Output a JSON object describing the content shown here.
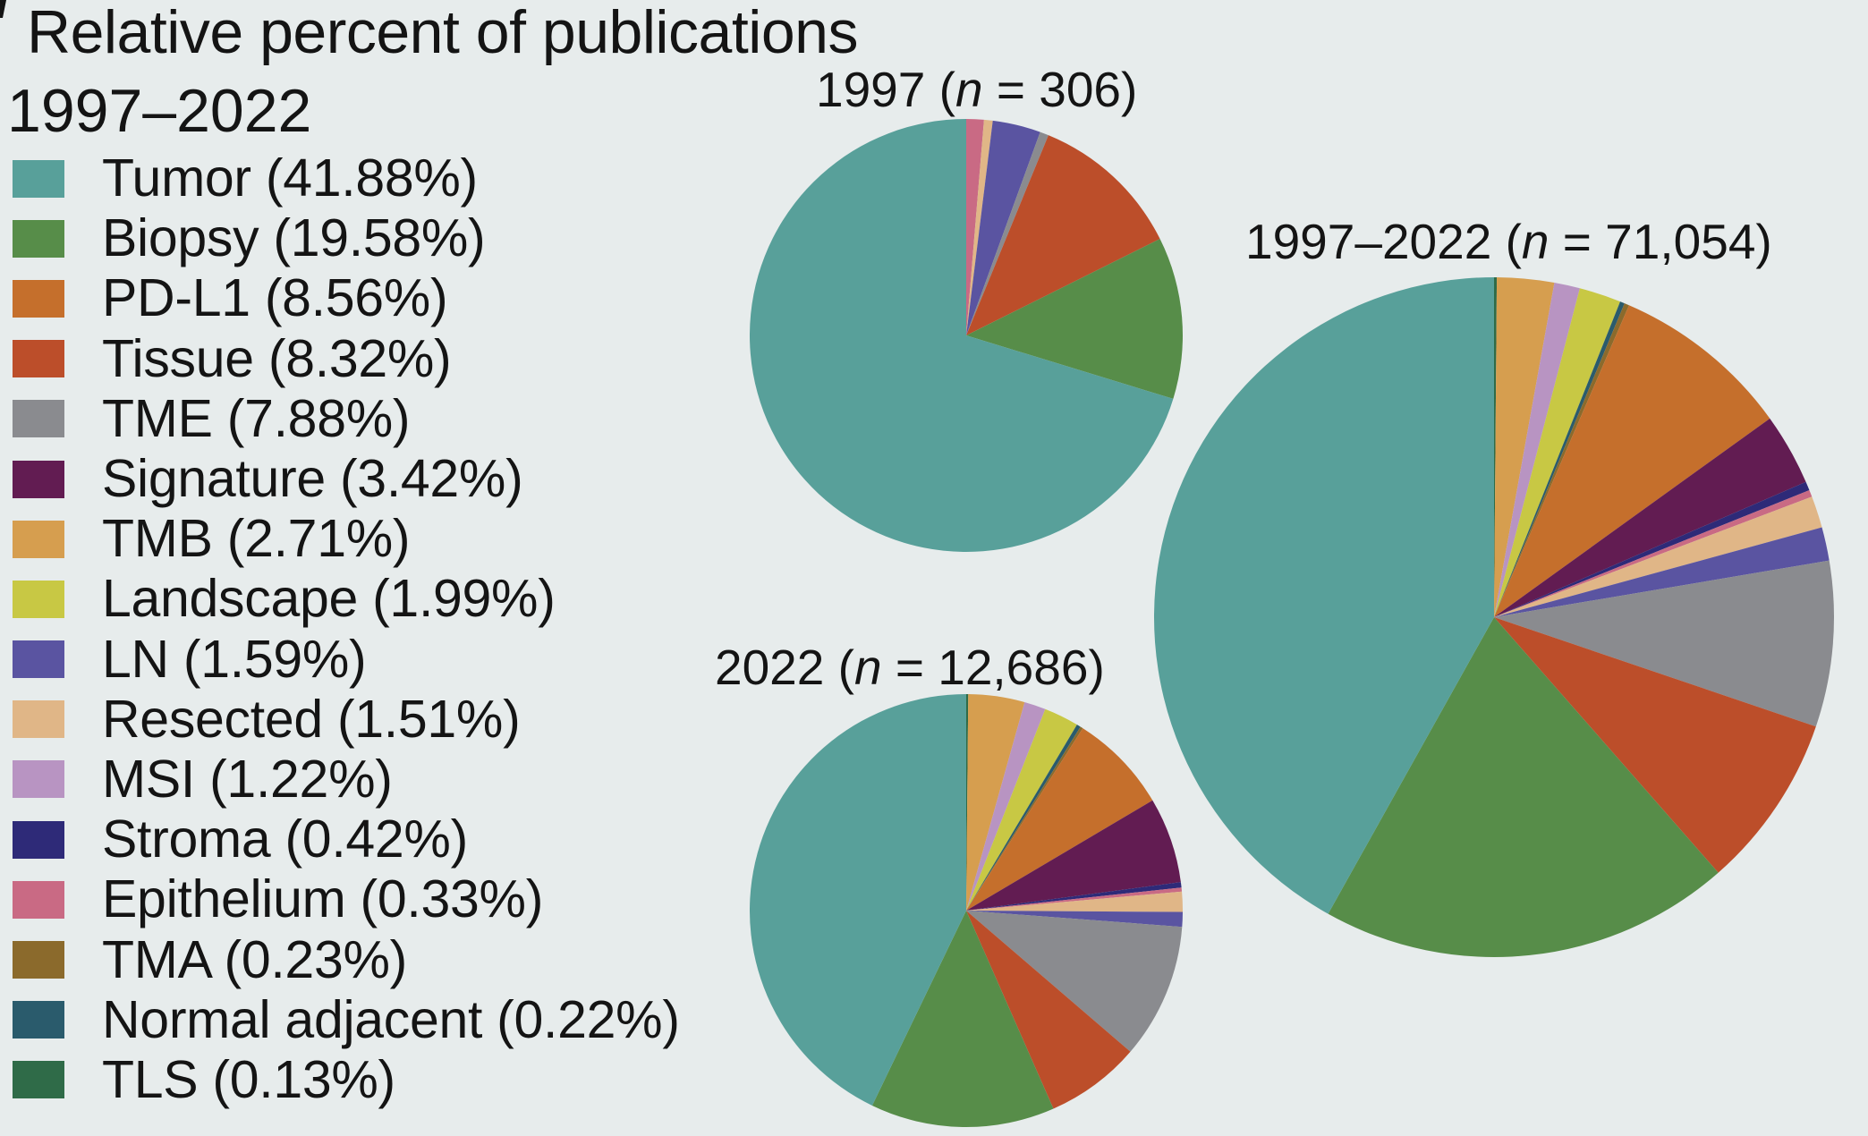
{
  "title": "Relative percent of publications",
  "legend_title": "1997–2022",
  "legend": [
    {
      "label": "Tumor (41.88%)",
      "color": "#58a09a"
    },
    {
      "label": "Biopsy (19.58%)",
      "color": "#578d49"
    },
    {
      "label": "PD-L1 (8.56%)",
      "color": "#c56f2c"
    },
    {
      "label": "Tissue (8.32%)",
      "color": "#bc4e2a"
    },
    {
      "label": "TME (7.88%)",
      "color": "#8a8b8f"
    },
    {
      "label": "Signature (3.42%)",
      "color": "#621c52"
    },
    {
      "label": "TMB (2.71%)",
      "color": "#d69e4f"
    },
    {
      "label": "Landscape (1.99%)",
      "color": "#c8c844"
    },
    {
      "label": "LN (1.59%)",
      "color": "#5a54a1"
    },
    {
      "label": "Resected (1.51%)",
      "color": "#e0b687"
    },
    {
      "label": "MSI (1.22%)",
      "color": "#b894c2"
    },
    {
      "label": "Stroma (0.42%)",
      "color": "#2e2a78"
    },
    {
      "label": "Epithelium (0.33%)",
      "color": "#c96a84"
    },
    {
      "label": "TMA (0.23%)",
      "color": "#8b6a2c"
    },
    {
      "label": "Normal adjacent (0.22%)",
      "color": "#2a5b6c"
    },
    {
      "label": "TLS (0.13%)",
      "color": "#2f6b48"
    }
  ],
  "chart_data": [
    {
      "type": "pie",
      "title_prefix": "1997 (",
      "title_n_symbol": "n",
      "title_suffix": " = 306)",
      "start_angle_deg": 0,
      "direction": "clockwise",
      "slices": [
        {
          "label": "Stroma",
          "value": 0.0
        },
        {
          "label": "Epithelium",
          "value": 1.31
        },
        {
          "label": "Resected",
          "value": 0.65
        },
        {
          "label": "LN",
          "value": 3.59
        },
        {
          "label": "TME",
          "value": 0.65
        },
        {
          "label": "Tissue",
          "value": 11.44
        },
        {
          "label": "Biopsy",
          "value": 12.09
        },
        {
          "label": "Tumor",
          "value": 70.27
        }
      ]
    },
    {
      "type": "pie",
      "title_prefix": "2022 (",
      "title_n_symbol": "n",
      "title_suffix": " = 12,686)",
      "start_angle_deg": 0,
      "direction": "clockwise",
      "slices": [
        {
          "label": "TLS",
          "value": 0.15
        },
        {
          "label": "TMB",
          "value": 4.2
        },
        {
          "label": "MSI",
          "value": 1.6
        },
        {
          "label": "Landscape",
          "value": 2.6
        },
        {
          "label": "Normal adjacent",
          "value": 0.3
        },
        {
          "label": "TMA",
          "value": 0.2
        },
        {
          "label": "PD-L1",
          "value": 7.45
        },
        {
          "label": "Signature",
          "value": 6.4
        },
        {
          "label": "Stroma",
          "value": 0.4
        },
        {
          "label": "Epithelium",
          "value": 0.3
        },
        {
          "label": "Resected",
          "value": 1.5
        },
        {
          "label": "LN",
          "value": 1.1
        },
        {
          "label": "TME",
          "value": 10.1
        },
        {
          "label": "Tissue",
          "value": 7.1
        },
        {
          "label": "Biopsy",
          "value": 13.75
        },
        {
          "label": "Tumor",
          "value": 42.85
        }
      ]
    },
    {
      "type": "pie",
      "title_prefix": "1997–2022 (",
      "title_n_symbol": "n",
      "title_suffix": " = 71,054)",
      "start_angle_deg": 0,
      "direction": "clockwise",
      "slices": [
        {
          "label": "TLS",
          "value": 0.13
        },
        {
          "label": "TMB",
          "value": 2.71
        },
        {
          "label": "MSI",
          "value": 1.22
        },
        {
          "label": "Landscape",
          "value": 1.99
        },
        {
          "label": "Normal adjacent",
          "value": 0.22
        },
        {
          "label": "TMA",
          "value": 0.23
        },
        {
          "label": "PD-L1",
          "value": 8.56
        },
        {
          "label": "Signature",
          "value": 3.42
        },
        {
          "label": "Stroma",
          "value": 0.42
        },
        {
          "label": "Epithelium",
          "value": 0.33
        },
        {
          "label": "Resected",
          "value": 1.51
        },
        {
          "label": "LN",
          "value": 1.59
        },
        {
          "label": "TME",
          "value": 7.88
        },
        {
          "label": "Tissue",
          "value": 8.32
        },
        {
          "label": "Biopsy",
          "value": 19.58
        },
        {
          "label": "Tumor",
          "value": 41.88
        }
      ]
    }
  ]
}
